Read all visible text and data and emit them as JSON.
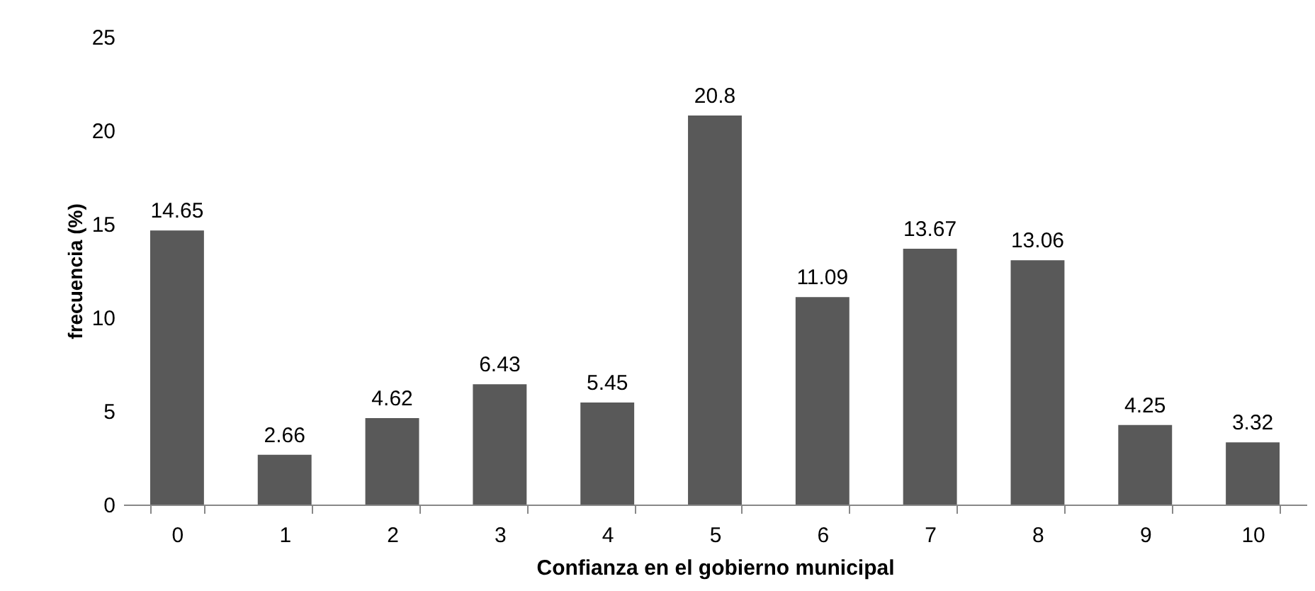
{
  "chart_data": {
    "type": "bar",
    "xlabel": "Confianza en el gobierno municipal",
    "ylabel": "frecuencia (%)",
    "categories": [
      "0",
      "1",
      "2",
      "3",
      "4",
      "5",
      "6",
      "7",
      "8",
      "9",
      "10"
    ],
    "values": [
      14.65,
      2.66,
      4.62,
      6.43,
      5.45,
      20.8,
      11.09,
      13.67,
      13.06,
      4.25,
      3.32
    ],
    "color": "#595959",
    "ylim": [
      0,
      25
    ],
    "yticks": [
      0,
      5,
      10,
      15,
      20,
      25
    ],
    "grid": false,
    "data_labels": true
  }
}
